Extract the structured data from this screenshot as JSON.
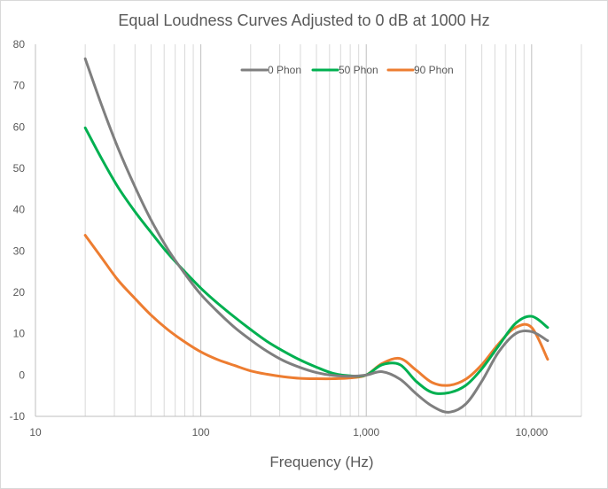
{
  "chart_data": {
    "type": "line",
    "title": "Equal Loudness Curves Adjusted to 0 dB at 1000 Hz",
    "xlabel": "Frequency (Hz)",
    "ylabel": "",
    "x_scale": "log",
    "xlim": [
      10,
      20000
    ],
    "ylim": [
      -10,
      80
    ],
    "x_ticks": [
      10,
      100,
      1000,
      10000
    ],
    "x_tick_labels": [
      "10",
      "100",
      "1,000",
      "10,000"
    ],
    "y_ticks": [
      -10,
      0,
      10,
      20,
      30,
      40,
      50,
      60,
      70,
      80
    ],
    "y_tick_labels": [
      "-10",
      "0",
      "10",
      "20",
      "30",
      "40",
      "50",
      "60",
      "70",
      "80"
    ],
    "grid": "vertical log gridlines",
    "legend_position": "top-right",
    "x": [
      20,
      25,
      31.5,
      40,
      50,
      63,
      80,
      100,
      125,
      160,
      200,
      250,
      315,
      400,
      500,
      630,
      800,
      1000,
      1250,
      1600,
      2000,
      2500,
      3150,
      4000,
      5000,
      6300,
      8000,
      10000,
      12500
    ],
    "series": [
      {
        "name": "0 Phon",
        "color": "#7f7f7f",
        "values": [
          76.5,
          65.5,
          55.0,
          45.5,
          37.5,
          30.5,
          24.5,
          19.5,
          15.5,
          11.5,
          8.5,
          5.8,
          3.5,
          1.8,
          0.6,
          -0.1,
          -0.3,
          0.0,
          0.8,
          -1.0,
          -4.5,
          -7.5,
          -9.0,
          -7.0,
          -1.5,
          5.5,
          10.0,
          10.5,
          8.3
        ]
      },
      {
        "name": "50 Phon",
        "color": "#00b050",
        "values": [
          59.8,
          52.5,
          45.5,
          39.5,
          34.5,
          29.5,
          25.0,
          21.0,
          17.5,
          14.0,
          11.0,
          8.2,
          5.8,
          3.6,
          1.9,
          0.4,
          -0.2,
          0.0,
          2.5,
          2.5,
          -1.5,
          -4.2,
          -4.3,
          -2.5,
          1.5,
          7.0,
          12.5,
          14.2,
          11.5
        ]
      },
      {
        "name": "90 Phon",
        "color": "#ed7d31",
        "values": [
          33.8,
          28.5,
          23.0,
          18.5,
          14.5,
          11.0,
          8.0,
          5.6,
          3.8,
          2.3,
          1.0,
          0.2,
          -0.4,
          -0.8,
          -0.9,
          -0.9,
          -0.7,
          0.0,
          2.8,
          4.0,
          1.2,
          -1.8,
          -2.5,
          -1.0,
          2.5,
          7.5,
          11.5,
          11.5,
          3.8
        ]
      }
    ]
  }
}
